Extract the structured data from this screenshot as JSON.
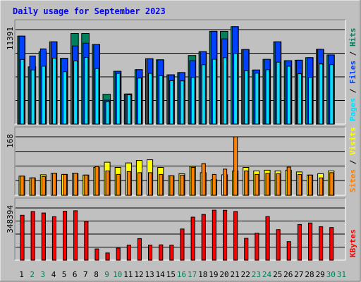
{
  "chart_data": {
    "type": "bar",
    "title": "Daily usage for September 2023",
    "categories": [
      "1",
      "2",
      "3",
      "4",
      "5",
      "6",
      "7",
      "8",
      "9",
      "10",
      "11",
      "12",
      "13",
      "14",
      "15",
      "16",
      "17",
      "18",
      "19",
      "20",
      "21",
      "22",
      "23",
      "24",
      "25",
      "26",
      "27",
      "28",
      "29",
      "30",
      "31"
    ],
    "weekend_days": [
      2,
      3,
      9,
      10,
      16,
      17,
      23,
      24,
      30,
      31
    ],
    "colors": {
      "hits": "#00805c",
      "files": "#0040ff",
      "pages": "#00e0ff",
      "visits": "#ffff00",
      "sites": "#ff8000",
      "kbytes": "#ff0000",
      "title": "#0000ff",
      "day_weekday": "#000000",
      "day_weekend": "#00805c"
    },
    "panels": [
      {
        "id": "hits",
        "ymax_label": "11391",
        "ymax": 11391,
        "legend": [
          {
            "text": "Pages",
            "color": "#00e0ff"
          },
          {
            "text": "Files",
            "color": "#0040ff"
          },
          {
            "text": "Hits",
            "color": "#00805c"
          }
        ],
        "series": [
          {
            "name": "Hits",
            "color": "#00805c",
            "values": [
              10610,
              6900,
              8730,
              9920,
              7930,
              10920,
              10920,
              9600,
              3600,
              6370,
              3630,
              6560,
              7880,
              7750,
              5940,
              6210,
              8270,
              8730,
              11190,
              11190,
              11750,
              8990,
              6520,
              7800,
              9920,
              7650,
              7700,
              8010,
              9020,
              8340,
              0
            ]
          },
          {
            "name": "Files",
            "color": "#0040ff",
            "values": [
              10610,
              8210,
              9070,
              9920,
              7930,
              9420,
              9750,
              9600,
              2880,
              6370,
              3630,
              6560,
              7880,
              7750,
              5940,
              6210,
              7650,
              8730,
              11190,
              10280,
              11750,
              8990,
              6520,
              7800,
              9920,
              7650,
              7700,
              8010,
              9020,
              8340,
              0
            ]
          },
          {
            "name": "Pages",
            "color": "#00e0ff",
            "values": [
              7790,
              6530,
              6980,
              7960,
              6320,
              7620,
              8040,
              6700,
              2700,
              6110,
              3530,
              5550,
              6110,
              5830,
              5240,
              5210,
              5630,
              7160,
              7810,
              8010,
              8520,
              6440,
              6140,
              6550,
              7460,
              6980,
              6070,
              5640,
              7250,
              7170,
              0
            ]
          }
        ]
      },
      {
        "id": "visits",
        "ymax_label": "168",
        "ymax": 168,
        "legend": [
          {
            "text": "Sites",
            "color": "#ff8000"
          },
          {
            "text": "Visits",
            "color": "#ffff00"
          }
        ],
        "series": [
          {
            "name": "Visits",
            "color": "#ffff00",
            "values": [
              55,
              50,
              59,
              63,
              60,
              63,
              58,
              80,
              95,
              80,
              93,
              100,
              102,
              80,
              56,
              62,
              83,
              65,
              45,
              59,
              70,
              80,
              70,
              72,
              70,
              72,
              67,
              58,
              62,
              70,
              0
            ]
          },
          {
            "name": "Sites",
            "color": "#ff8000",
            "values": [
              55,
              50,
              54,
              63,
              60,
              63,
              58,
              83,
              70,
              60,
              68,
              65,
              65,
              60,
              56,
              58,
              80,
              91,
              60,
              75,
              168,
              70,
              60,
              63,
              62,
              81,
              60,
              58,
              50,
              65,
              0
            ]
          }
        ]
      },
      {
        "id": "kbytes",
        "ymax_label": "348394",
        "ymax": 348394,
        "legend": [
          {
            "text": "KBytes",
            "color": "#ff0000"
          }
        ],
        "series": [
          {
            "name": "KBytes",
            "color": "#ff0000",
            "values": [
              300000,
              325000,
              315000,
              290000,
              327000,
              330000,
              260000,
              75000,
              48000,
              80000,
              100000,
              144000,
              100000,
              102000,
              100000,
              208000,
              287000,
              305000,
              334000,
              333000,
              325000,
              146000,
              180000,
              291000,
              204000,
              124000,
              238000,
              248000,
              223000,
              218000,
              0
            ]
          }
        ]
      }
    ]
  }
}
